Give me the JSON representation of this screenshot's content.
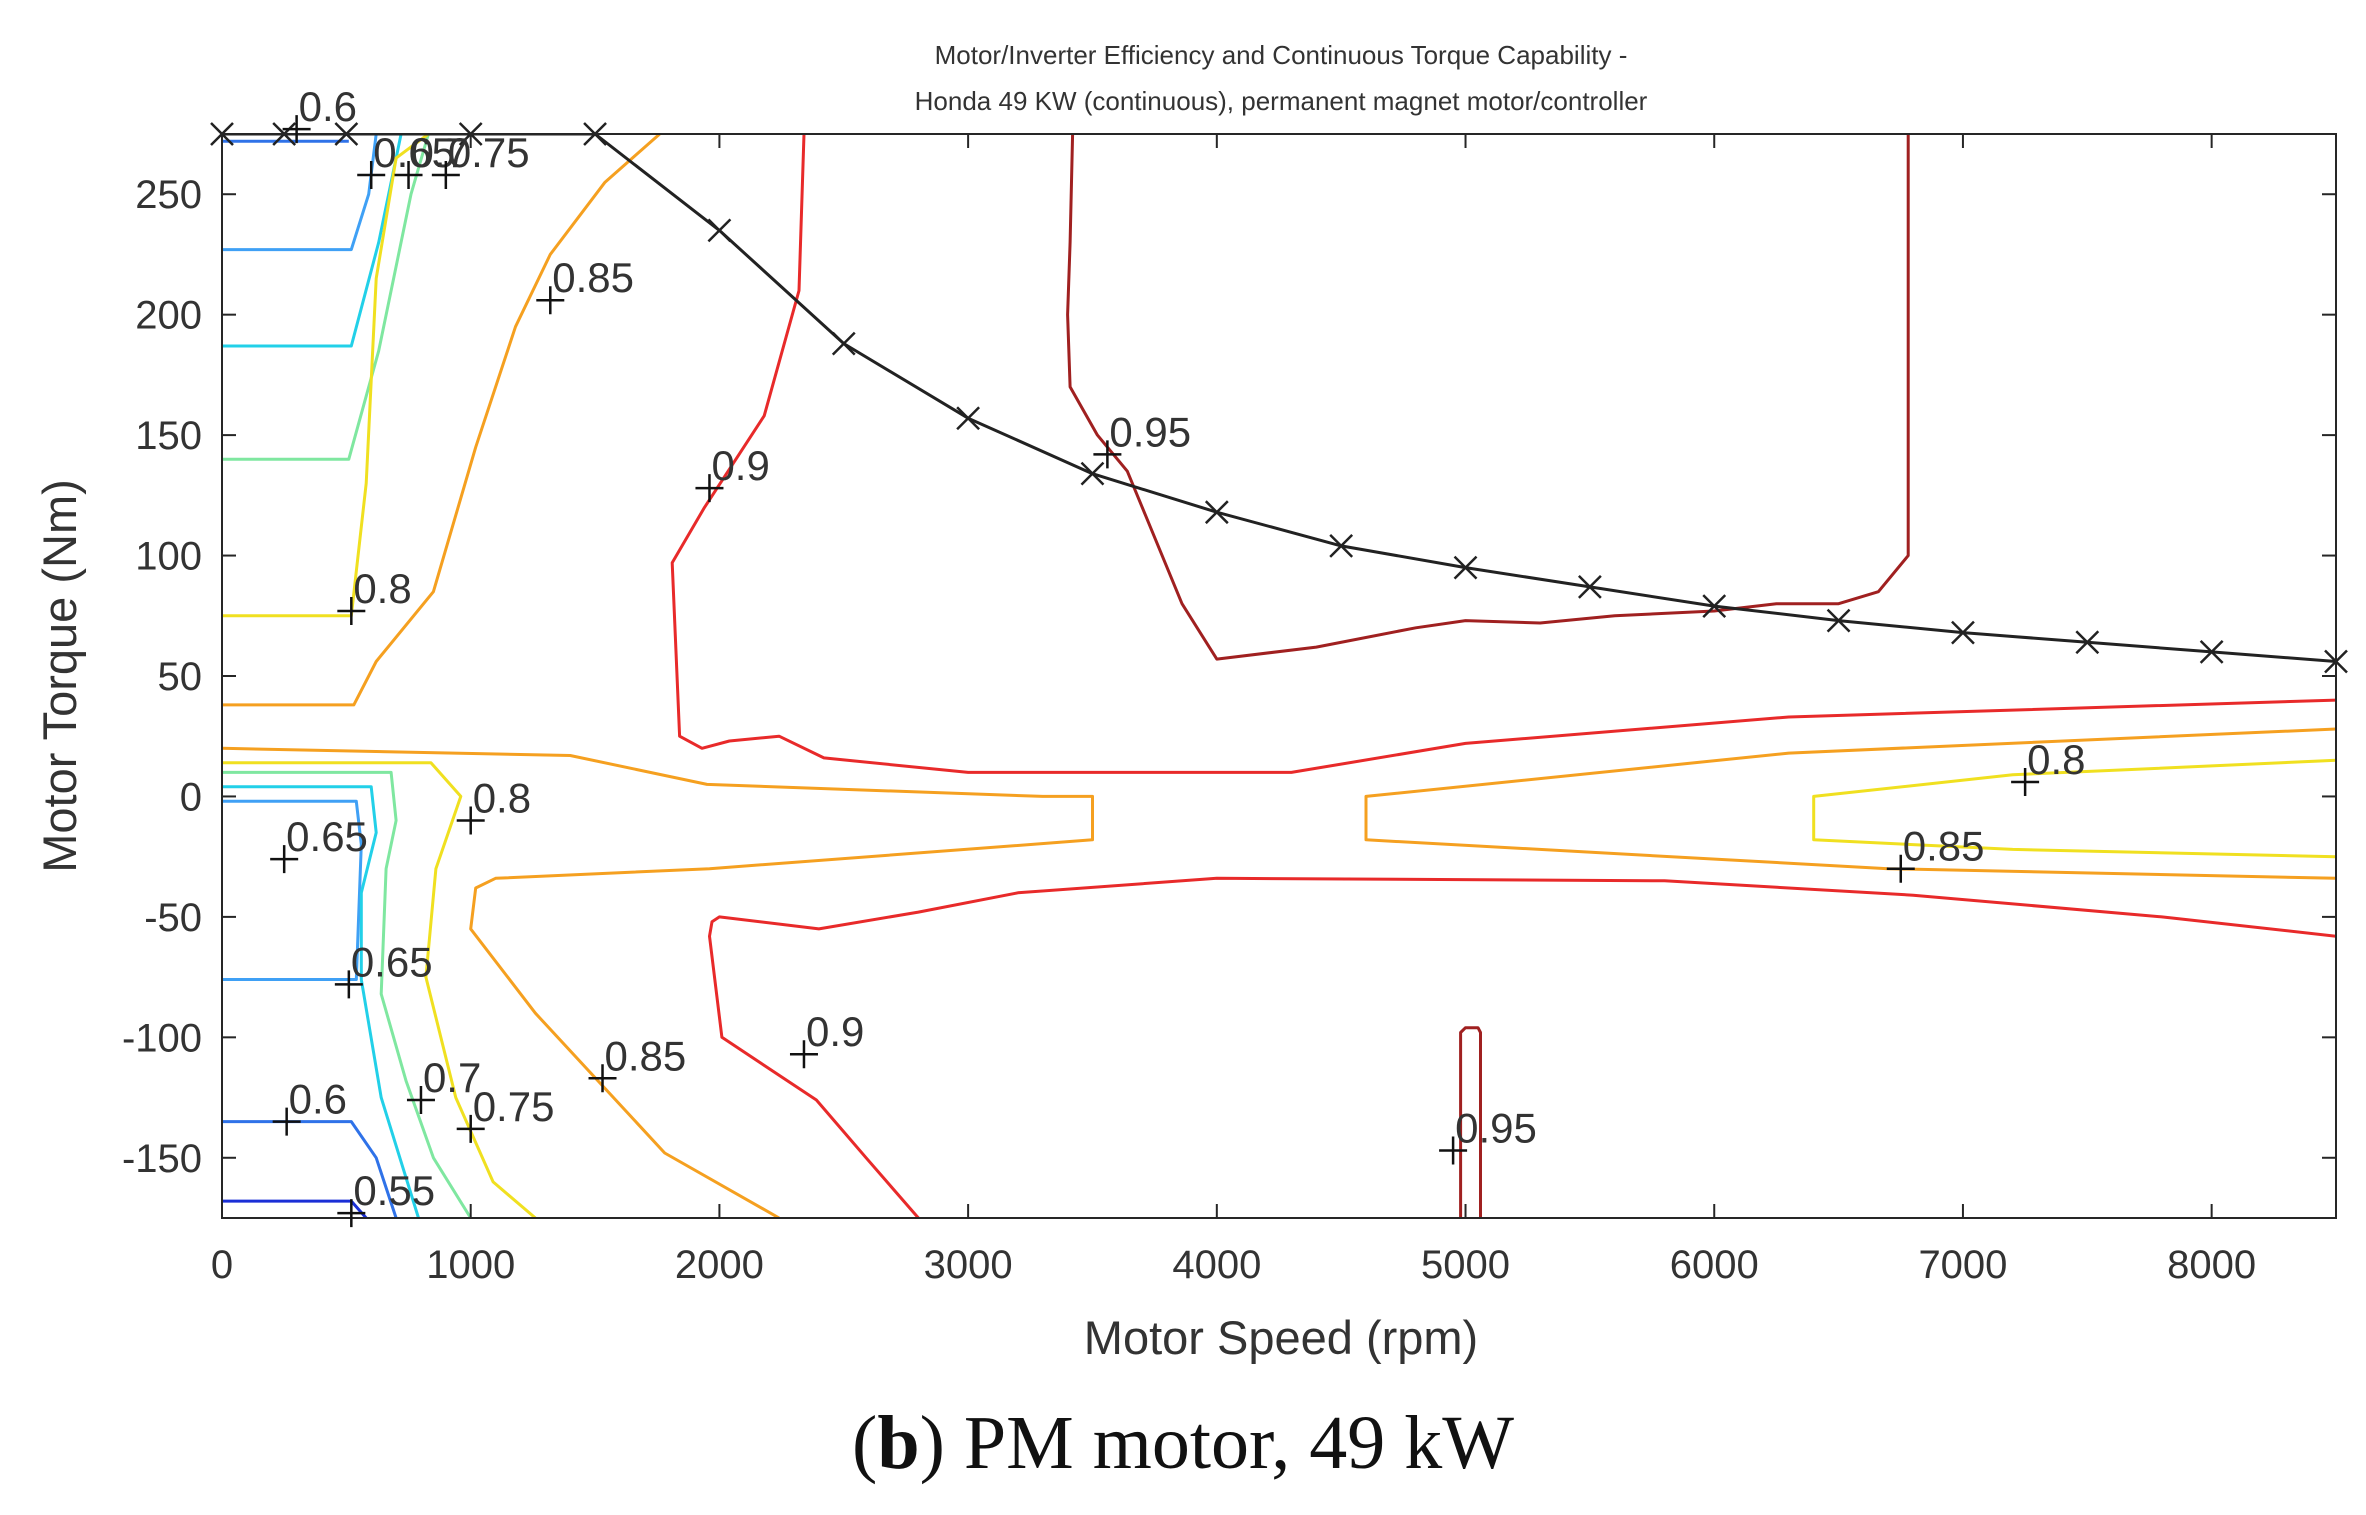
{
  "chart_data": {
    "type": "contour",
    "title": "Motor/Inverter Efficiency and Continuous Torque Capability -",
    "subtitle": "Honda 49 KW (continuous), permanent magnet motor/controller",
    "xlabel": "Motor Speed (rpm)",
    "ylabel": "Motor Torque (Nm)",
    "xlim": [
      0,
      8500
    ],
    "ylim": [
      -175,
      275
    ],
    "xticks": [
      0,
      1000,
      2000,
      3000,
      4000,
      5000,
      6000,
      7000,
      8000
    ],
    "yticks": [
      -150,
      -100,
      -50,
      0,
      50,
      100,
      150,
      200,
      250
    ],
    "grid": false,
    "series": [
      {
        "name": "max continuous torque",
        "color": "#222222",
        "marker": "x",
        "points": [
          [
            0,
            275
          ],
          [
            250,
            275
          ],
          [
            500,
            275
          ],
          [
            1000,
            275
          ],
          [
            1500,
            275
          ],
          [
            2000,
            235
          ],
          [
            2500,
            188
          ],
          [
            3000,
            157
          ],
          [
            3500,
            134
          ],
          [
            4000,
            118
          ],
          [
            4500,
            104
          ],
          [
            5000,
            95
          ],
          [
            5500,
            87
          ],
          [
            6000,
            79
          ],
          [
            6500,
            73
          ],
          [
            7000,
            68
          ],
          [
            7500,
            64
          ],
          [
            8000,
            60
          ],
          [
            8500,
            56
          ]
        ]
      },
      {
        "name": "0.55",
        "level": 0.55,
        "color": "#1a2fd6",
        "segments": [
          [
            [
              0,
              -168
            ],
            [
              520,
              -168
            ],
            [
              580,
              -175
            ]
          ]
        ]
      },
      {
        "name": "0.6",
        "level": 0.6,
        "color": "#2f72e8",
        "segments": [
          [
            [
              0,
              272
            ],
            [
              510,
              272
            ]
          ],
          [
            [
              0,
              -135
            ],
            [
              520,
              -135
            ],
            [
              620,
              -150
            ],
            [
              700,
              -175
            ]
          ]
        ]
      },
      {
        "name": "0.65",
        "level": 0.65,
        "color": "#3fa0f5",
        "segments": [
          [
            [
              0,
              227
            ],
            [
              520,
              227
            ],
            [
              590,
              250
            ],
            [
              620,
              275
            ]
          ],
          [
            [
              0,
              -2
            ],
            [
              540,
              -2
            ],
            [
              560,
              -20
            ],
            [
              540,
              -76
            ],
            [
              0,
              -76
            ]
          ]
        ]
      },
      {
        "name": "0.7",
        "level": 0.7,
        "color": "#22d0e8",
        "segments": [
          [
            [
              0,
              187
            ],
            [
              520,
              187
            ],
            [
              630,
              230
            ],
            [
              720,
              275
            ]
          ],
          [
            [
              0,
              4
            ],
            [
              600,
              4
            ],
            [
              620,
              -15
            ],
            [
              560,
              -40
            ],
            [
              560,
              -76
            ],
            [
              640,
              -125
            ],
            [
              790,
              -175
            ]
          ]
        ]
      },
      {
        "name": "0.75",
        "level": 0.75,
        "color": "#7fe7a0",
        "segments": [
          [
            [
              0,
              140
            ],
            [
              510,
              140
            ],
            [
              630,
              185
            ],
            [
              760,
              250
            ],
            [
              830,
              275
            ]
          ],
          [
            [
              0,
              10
            ],
            [
              680,
              10
            ],
            [
              700,
              -10
            ],
            [
              660,
              -30
            ],
            [
              640,
              -82
            ],
            [
              740,
              -118
            ],
            [
              850,
              -150
            ],
            [
              1000,
              -175
            ]
          ]
        ]
      },
      {
        "name": "0.8",
        "level": 0.8,
        "color": "#f0e020",
        "segments": [
          [
            [
              0,
              75
            ],
            [
              520,
              75
            ],
            [
              580,
              130
            ],
            [
              620,
              215
            ],
            [
              700,
              265
            ],
            [
              830,
              275
            ]
          ],
          [
            [
              0,
              14
            ],
            [
              840,
              14
            ],
            [
              960,
              0
            ],
            [
              860,
              -30
            ],
            [
              820,
              -75
            ],
            [
              940,
              -125
            ],
            [
              1090,
              -160
            ],
            [
              1260,
              -175
            ]
          ],
          [
            [
              8500,
              15
            ],
            [
              7200,
              9
            ],
            [
              6400,
              0
            ],
            [
              6400,
              -18
            ],
            [
              7200,
              -22
            ],
            [
              8500,
              -25
            ]
          ]
        ]
      },
      {
        "name": "0.85",
        "level": 0.85,
        "color": "#f5a020",
        "segments": [
          [
            [
              0,
              38
            ],
            [
              530,
              38
            ],
            [
              620,
              56
            ],
            [
              850,
              85
            ],
            [
              1020,
              145
            ],
            [
              1180,
              195
            ],
            [
              1320,
              225
            ],
            [
              1540,
              255
            ],
            [
              1760,
              275
            ]
          ],
          [
            [
              0,
              20
            ],
            [
              1400,
              17
            ],
            [
              1950,
              5
            ],
            [
              3300,
              0
            ],
            [
              3500,
              0
            ],
            [
              3500,
              -18
            ],
            [
              1960,
              -30
            ],
            [
              1100,
              -34
            ],
            [
              1020,
              -38
            ],
            [
              1000,
              -55
            ],
            [
              1260,
              -90
            ],
            [
              1780,
              -148
            ],
            [
              2240,
              -175
            ]
          ],
          [
            [
              8500,
              28
            ],
            [
              6300,
              18
            ],
            [
              4600,
              0
            ],
            [
              4600,
              -18
            ],
            [
              6700,
              -30
            ],
            [
              8500,
              -34
            ]
          ]
        ]
      },
      {
        "name": "0.9",
        "level": 0.9,
        "color": "#e82a2a",
        "segments": [
          [
            [
              2340,
              275
            ],
            [
              2320,
              210
            ],
            [
              2180,
              158
            ],
            [
              1940,
              120
            ],
            [
              1810,
              97
            ],
            [
              1840,
              25
            ],
            [
              1930,
              20
            ],
            [
              2040,
              23
            ],
            [
              2240,
              25
            ],
            [
              2420,
              16
            ],
            [
              3000,
              10
            ],
            [
              3800,
              10
            ],
            [
              4300,
              10
            ],
            [
              5000,
              22
            ],
            [
              6300,
              33
            ],
            [
              8500,
              40
            ]
          ],
          [
            [
              8500,
              -58
            ],
            [
              7800,
              -50
            ],
            [
              6800,
              -41
            ],
            [
              5800,
              -35
            ],
            [
              4000,
              -34
            ],
            [
              3200,
              -40
            ],
            [
              2800,
              -48
            ],
            [
              2400,
              -55
            ],
            [
              2000,
              -50
            ],
            [
              1970,
              -52
            ],
            [
              1960,
              -58
            ],
            [
              2010,
              -100
            ],
            [
              2390,
              -126
            ],
            [
              2590,
              -150
            ],
            [
              2800,
              -175
            ]
          ]
        ]
      },
      {
        "name": "0.95",
        "level": 0.95,
        "color": "#a02020",
        "segments": [
          [
            [
              3420,
              275
            ],
            [
              3410,
              230
            ],
            [
              3400,
              200
            ],
            [
              3410,
              170
            ],
            [
              3520,
              150
            ],
            [
              3640,
              135
            ],
            [
              3860,
              80
            ],
            [
              4000,
              57
            ],
            [
              4400,
              62
            ],
            [
              4800,
              70
            ],
            [
              5000,
              73
            ],
            [
              5300,
              72
            ],
            [
              5600,
              75
            ],
            [
              6000,
              77
            ],
            [
              6250,
              80
            ],
            [
              6500,
              80
            ],
            [
              6660,
              85
            ],
            [
              6780,
              100
            ],
            [
              6780,
              275
            ]
          ],
          [
            [
              4980,
              -175
            ],
            [
              4980,
              -98
            ],
            [
              5000,
              -96
            ],
            [
              5050,
              -96
            ],
            [
              5060,
              -98
            ],
            [
              5060,
              -175
            ]
          ]
        ]
      }
    ],
    "annotations": [
      {
        "text": "0.6",
        "x": 300,
        "y": 277
      },
      {
        "text": "0.65",
        "x": 600,
        "y": 258
      },
      {
        "text": "0.7",
        "x": 750,
        "y": 258
      },
      {
        "text": "0.75",
        "x": 900,
        "y": 258
      },
      {
        "text": "0.85",
        "x": 1320,
        "y": 206
      },
      {
        "text": "0.9",
        "x": 1960,
        "y": 128
      },
      {
        "text": "0.95",
        "x": 3560,
        "y": 142
      },
      {
        "text": "0.8",
        "x": 520,
        "y": 77
      },
      {
        "text": "0.8",
        "x": 1000,
        "y": -10
      },
      {
        "text": "0.65",
        "x": 250,
        "y": -26
      },
      {
        "text": "0.8",
        "x": 7250,
        "y": 6
      },
      {
        "text": "0.85",
        "x": 6750,
        "y": -30
      },
      {
        "text": "0.65",
        "x": 510,
        "y": -78
      },
      {
        "text": "0.9",
        "x": 2340,
        "y": -107
      },
      {
        "text": "0.85",
        "x": 1530,
        "y": -117
      },
      {
        "text": "0.7",
        "x": 800,
        "y": -126
      },
      {
        "text": "0.6",
        "x": 260,
        "y": -135
      },
      {
        "text": "0.75",
        "x": 1000,
        "y": -138
      },
      {
        "text": "0.95",
        "x": 4950,
        "y": -147
      },
      {
        "text": "0.55",
        "x": 520,
        "y": -173
      }
    ]
  },
  "caption": {
    "letter": "b",
    "text": "PM motor, 49 kW"
  }
}
